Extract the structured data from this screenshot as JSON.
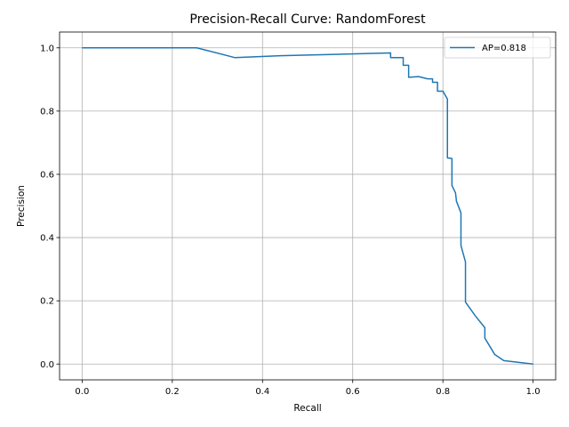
{
  "chart_data": {
    "type": "line",
    "title": "Precision-Recall Curve: RandomForest",
    "xlabel": "Recall",
    "ylabel": "Precision",
    "xlim": [
      -0.05,
      1.05
    ],
    "ylim": [
      -0.05,
      1.05
    ],
    "xticks": [
      0.0,
      0.2,
      0.4,
      0.6,
      0.8,
      1.0
    ],
    "xtick_labels": [
      "0.0",
      "0.2",
      "0.4",
      "0.6",
      "0.8",
      "1.0"
    ],
    "yticks": [
      0.0,
      0.2,
      0.4,
      0.6,
      0.8,
      1.0
    ],
    "ytick_labels": [
      "0.0",
      "0.2",
      "0.4",
      "0.6",
      "0.8",
      "1.0"
    ],
    "grid": true,
    "legend_position": "top-right",
    "series": [
      {
        "name": "AP=0.818",
        "color": "#1f77b4",
        "points": [
          [
            0.0,
            1.0
          ],
          [
            0.254,
            1.0
          ],
          [
            0.339,
            0.969
          ],
          [
            0.44,
            0.975
          ],
          [
            0.684,
            0.984
          ],
          [
            0.684,
            0.969
          ],
          [
            0.712,
            0.969
          ],
          [
            0.712,
            0.945
          ],
          [
            0.724,
            0.945
          ],
          [
            0.724,
            0.907
          ],
          [
            0.746,
            0.909
          ],
          [
            0.766,
            0.902
          ],
          [
            0.777,
            0.902
          ],
          [
            0.777,
            0.891
          ],
          [
            0.788,
            0.891
          ],
          [
            0.788,
            0.863
          ],
          [
            0.8,
            0.863
          ],
          [
            0.81,
            0.838
          ],
          [
            0.81,
            0.652
          ],
          [
            0.82,
            0.65
          ],
          [
            0.82,
            0.565
          ],
          [
            0.828,
            0.541
          ],
          [
            0.83,
            0.515
          ],
          [
            0.84,
            0.478
          ],
          [
            0.84,
            0.375
          ],
          [
            0.85,
            0.323
          ],
          [
            0.85,
            0.196
          ],
          [
            0.872,
            0.152
          ],
          [
            0.893,
            0.115
          ],
          [
            0.893,
            0.082
          ],
          [
            0.915,
            0.03
          ],
          [
            0.935,
            0.011
          ],
          [
            1.0,
            0.0
          ]
        ]
      }
    ]
  }
}
